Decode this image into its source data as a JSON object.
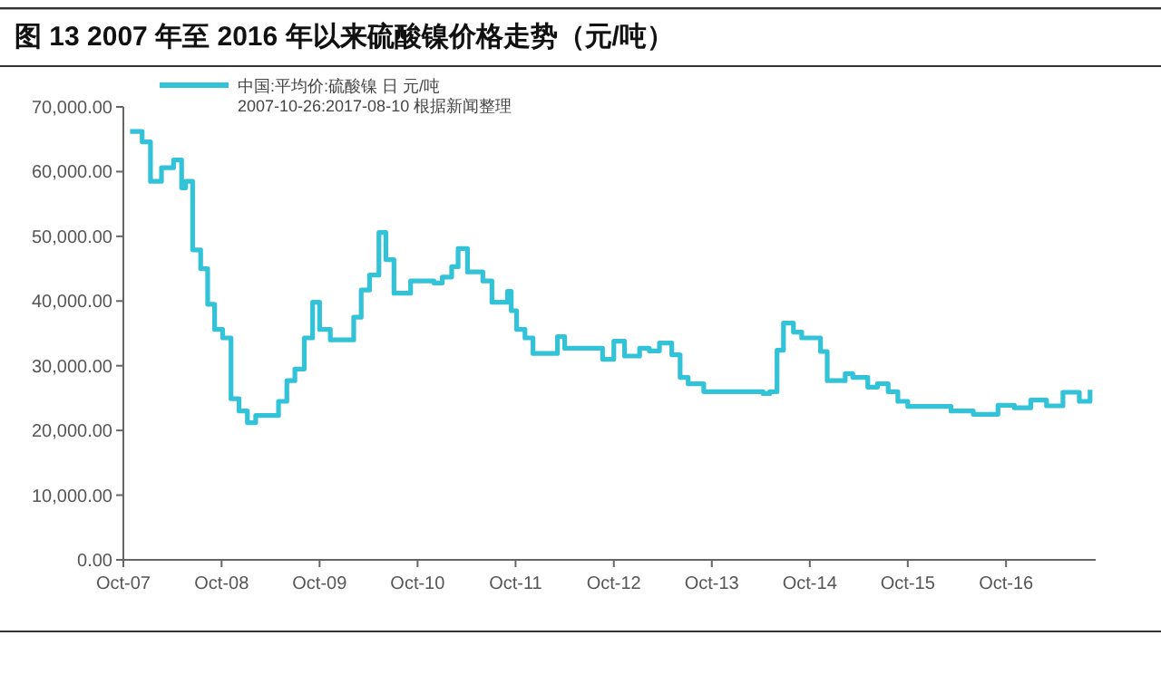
{
  "chart_data": {
    "type": "step",
    "title": "图 13 2007 年至 2016 年以来硫酸镍价格走势（元/吨）",
    "annotations": [
      "2007-10-26:2017-08-10 根据新闻整理"
    ],
    "x": [
      "2007-10-26",
      "2007-12-10",
      "2008-01-10",
      "2008-02-20",
      "2008-04-05",
      "2008-05-05",
      "2008-05-20",
      "2008-06-15",
      "2008-07-15",
      "2008-08-10",
      "2008-09-05",
      "2008-10-05",
      "2008-11-05",
      "2008-12-05",
      "2009-01-05",
      "2009-02-05",
      "2009-05-01",
      "2009-06-01",
      "2009-07-01",
      "2009-08-05",
      "2009-09-05",
      "2009-10-01",
      "2009-11-10",
      "2010-02-05",
      "2010-03-05",
      "2010-04-05",
      "2010-05-10",
      "2010-06-05",
      "2010-07-05",
      "2010-09-05",
      "2010-12-01",
      "2011-01-01",
      "2011-02-05",
      "2011-03-01",
      "2011-04-05",
      "2011-06-01",
      "2011-07-05",
      "2011-09-01",
      "2011-09-15",
      "2011-10-05",
      "2011-11-05",
      "2011-12-05",
      "2012-03-05",
      "2012-04-01",
      "2012-08-20",
      "2012-10-01",
      "2012-11-10",
      "2013-01-05",
      "2013-02-10",
      "2013-03-20",
      "2013-05-05",
      "2013-06-05",
      "2013-07-05",
      "2013-09-01",
      "2013-10-05",
      "2014-04-10",
      "2014-05-05",
      "2014-06-01",
      "2014-06-25",
      "2014-08-01",
      "2014-09-01",
      "2014-11-10",
      "2014-12-05",
      "2015-02-10",
      "2015-03-10",
      "2015-05-05",
      "2015-06-10",
      "2015-07-20",
      "2015-08-25",
      "2015-10-01",
      "2016-03-10",
      "2016-06-01",
      "2016-09-01",
      "2016-11-01",
      "2017-01-01",
      "2017-03-01",
      "2017-05-01",
      "2017-07-01",
      "2017-08-10"
    ],
    "series": [
      {
        "name": "中国:平均价:硫酸镍 日 元/吨",
        "color": "#33c3d8",
        "values": [
          66200,
          64600,
          58500,
          60600,
          61800,
          57500,
          58500,
          47900,
          45000,
          39500,
          35600,
          34300,
          24900,
          23000,
          21200,
          22300,
          24500,
          27700,
          29500,
          34300,
          39800,
          35600,
          34000,
          37500,
          41700,
          44000,
          50600,
          46400,
          41200,
          43100,
          42800,
          43700,
          45300,
          48100,
          44500,
          43100,
          39800,
          41500,
          38500,
          35600,
          34300,
          31900,
          34500,
          32700,
          31000,
          33800,
          31500,
          32700,
          32300,
          33500,
          31700,
          28200,
          27200,
          26000,
          26000,
          25700,
          26000,
          32400,
          36600,
          35200,
          34300,
          32200,
          27700,
          28800,
          28200,
          26700,
          27200,
          26000,
          24500,
          23700,
          23000,
          22500,
          23900,
          23500,
          24700,
          23800,
          25900,
          24500,
          26300
        ]
      }
    ],
    "xlim": [
      "2007-10-01",
      "2017-08-31"
    ],
    "xticks": [
      {
        "value": "2007-10-01",
        "label": "Oct-07"
      },
      {
        "value": "2008-10-01",
        "label": "Oct-08"
      },
      {
        "value": "2009-10-01",
        "label": "Oct-09"
      },
      {
        "value": "2010-10-01",
        "label": "Oct-10"
      },
      {
        "value": "2011-10-01",
        "label": "Oct-11"
      },
      {
        "value": "2012-10-01",
        "label": "Oct-12"
      },
      {
        "value": "2013-10-01",
        "label": "Oct-13"
      },
      {
        "value": "2014-10-01",
        "label": "Oct-14"
      },
      {
        "value": "2015-10-01",
        "label": "Oct-15"
      },
      {
        "value": "2016-10-01",
        "label": "Oct-16"
      }
    ],
    "ylim": [
      0,
      70000
    ],
    "yticks": [
      {
        "value": 0,
        "label": "0.00"
      },
      {
        "value": 10000,
        "label": "10,000.00"
      },
      {
        "value": 20000,
        "label": "20,000.00"
      },
      {
        "value": 30000,
        "label": "30,000.00"
      },
      {
        "value": 40000,
        "label": "40,000.00"
      },
      {
        "value": 50000,
        "label": "50,000.00"
      },
      {
        "value": 60000,
        "label": "60,000.00"
      },
      {
        "value": 70000,
        "label": "70,000.00"
      }
    ],
    "grid": false,
    "legend": "top left",
    "line_style": "solid",
    "marker": "none"
  }
}
